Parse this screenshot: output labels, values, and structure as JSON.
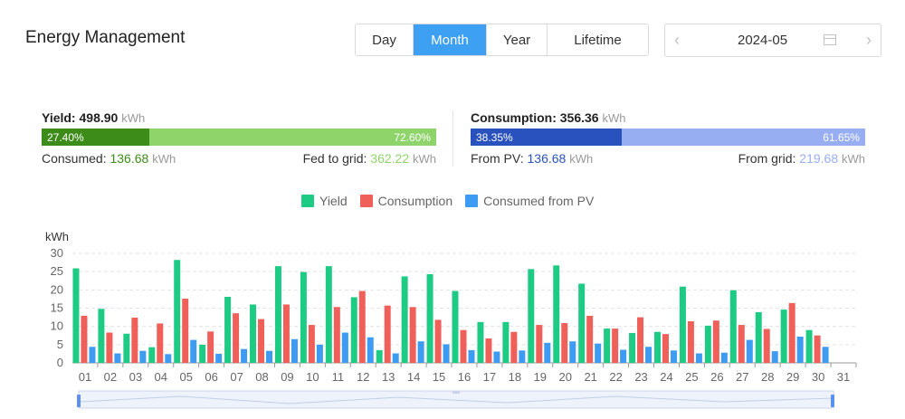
{
  "header": {
    "title": "Energy Management"
  },
  "period_tabs": [
    {
      "label": "Day",
      "active": false
    },
    {
      "label": "Month",
      "active": true
    },
    {
      "label": "Year",
      "active": false
    },
    {
      "label": "Lifetime",
      "active": false
    }
  ],
  "date_picker": {
    "value": "2024-05",
    "prev_icon": "chevron-left-icon",
    "next_icon": "chevron-right-icon",
    "calendar_icon": "calendar-icon"
  },
  "yield": {
    "label": "Yield:",
    "value": "498.90",
    "unit": "kWh",
    "left_pct": "27.40%",
    "right_pct": "72.60%",
    "left_fraction": 0.274,
    "left_color": "#3d8c1a",
    "right_color": "#8fd46b",
    "consumed_label": "Consumed:",
    "consumed_value": "136.68",
    "consumed_unit": "kWh",
    "fed_label": "Fed to grid:",
    "fed_value": "362.22",
    "fed_unit": "kWh"
  },
  "consumption": {
    "label": "Consumption:",
    "value": "356.36",
    "unit": "kWh",
    "left_pct": "38.35%",
    "right_pct": "61.65%",
    "left_fraction": 0.3835,
    "left_color": "#2a52be",
    "right_color": "#98aef2",
    "pv_label": "From PV:",
    "pv_value": "136.68",
    "pv_unit": "kWh",
    "grid_label": "From grid:",
    "grid_value": "219.68",
    "grid_unit": "kWh"
  },
  "chart_data": {
    "type": "bar",
    "ylabel": "kWh",
    "ylim": [
      0,
      30
    ],
    "yticks": [
      0,
      5,
      10,
      15,
      20,
      25,
      30
    ],
    "grid": true,
    "legend_position": "top-center",
    "categories": [
      "01",
      "02",
      "03",
      "04",
      "05",
      "06",
      "07",
      "08",
      "09",
      "10",
      "11",
      "12",
      "13",
      "14",
      "15",
      "16",
      "17",
      "18",
      "19",
      "20",
      "21",
      "22",
      "23",
      "24",
      "25",
      "26",
      "27",
      "28",
      "29",
      "30",
      "31"
    ],
    "series": [
      {
        "name": "Yield",
        "color": "#1ecb84",
        "values": [
          25.9,
          14.8,
          8.0,
          4.3,
          28.2,
          5.0,
          18.1,
          16.0,
          26.5,
          24.9,
          26.5,
          18.0,
          3.5,
          23.7,
          24.3,
          19.7,
          11.2,
          11.2,
          25.7,
          26.7,
          21.7,
          9.4,
          8.2,
          8.5,
          20.9,
          10.2,
          19.9,
          13.9,
          14.6,
          9.0,
          null
        ]
      },
      {
        "name": "Consumption",
        "color": "#f0605a",
        "values": [
          12.9,
          8.3,
          12.4,
          10.8,
          17.6,
          8.6,
          13.6,
          12.0,
          16.0,
          10.4,
          15.3,
          19.7,
          15.7,
          15.3,
          11.8,
          9.0,
          6.7,
          8.5,
          10.4,
          10.9,
          12.9,
          9.4,
          12.5,
          7.9,
          11.4,
          11.6,
          10.4,
          9.3,
          16.4,
          7.5,
          null
        ]
      },
      {
        "name": "Consumed from PV",
        "color": "#3d9cf2",
        "values": [
          4.4,
          2.6,
          3.3,
          2.4,
          6.3,
          2.5,
          3.8,
          3.3,
          6.5,
          5.0,
          8.3,
          7.0,
          2.6,
          5.9,
          5.1,
          3.5,
          3.1,
          3.4,
          5.5,
          5.9,
          5.3,
          3.6,
          4.4,
          3.4,
          2.6,
          2.8,
          6.3,
          3.2,
          7.2,
          4.4,
          null
        ]
      }
    ]
  }
}
